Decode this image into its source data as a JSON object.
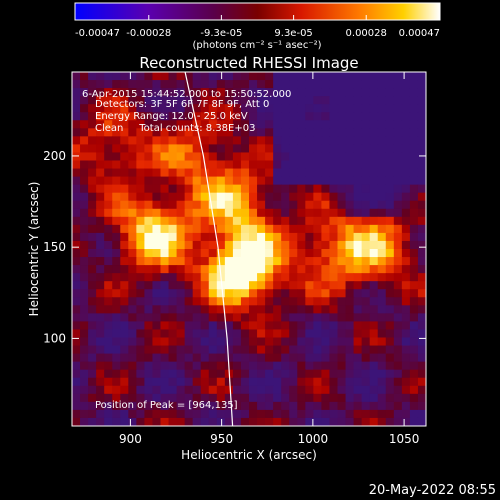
{
  "chart_data": {
    "type": "heatmap",
    "title": "Reconstructed RHESSI Image",
    "xlabel": "Heliocentric X (arcsec)",
    "ylabel": "Heliocentric Y (arcsec)",
    "xlim": [
      868,
      1062
    ],
    "ylim": [
      52,
      246
    ],
    "x_ticks": [
      900,
      950,
      1000,
      1050
    ],
    "y_ticks": [
      100,
      150,
      200
    ],
    "colorbar": {
      "ticks": [
        "-0.00047",
        "-0.00028",
        "-9.3e-05",
        "9.3e-05",
        "0.00028",
        "0.00047"
      ],
      "tick_values": [
        -0.00047,
        -0.00028,
        -9.3e-05,
        9.3e-05,
        0.00028,
        0.00047
      ],
      "range": [
        -0.00047,
        0.00047
      ],
      "units": "(photons cm⁻² s⁻¹ asec⁻²)",
      "colormap": "blue-purple-red-orange-yellow-white"
    },
    "annotations": [
      " 6-Apr-2015 15:44:52.000 to 15:50:52.000",
      "Detectors: 3F 5F 6F 7F 8F 9F, Att 0",
      "Energy Range: 12.0 - 25.0 keV",
      "Clean     Total counts: 8.38E+03",
      "Position of Peak = [964,135]"
    ],
    "peak": [
      964,
      135
    ],
    "sources": [
      {
        "x": 912,
        "y": 157,
        "amp": 0.75
      },
      {
        "x": 962,
        "y": 138,
        "amp": 1.0
      },
      {
        "x": 958,
        "y": 175,
        "amp": 0.55
      },
      {
        "x": 1012,
        "y": 148,
        "amp": 0.5
      },
      {
        "x": 1038,
        "y": 150,
        "amp": 0.45
      },
      {
        "x": 890,
        "y": 205,
        "amp": 0.4
      },
      {
        "x": 935,
        "y": 200,
        "amp": 0.4
      }
    ],
    "limb": [
      [
        930,
        246
      ],
      [
        940,
        200
      ],
      [
        948,
        150
      ],
      [
        953,
        100
      ],
      [
        956,
        52
      ]
    ]
  },
  "timestamp": "20-May-2022 08:55"
}
